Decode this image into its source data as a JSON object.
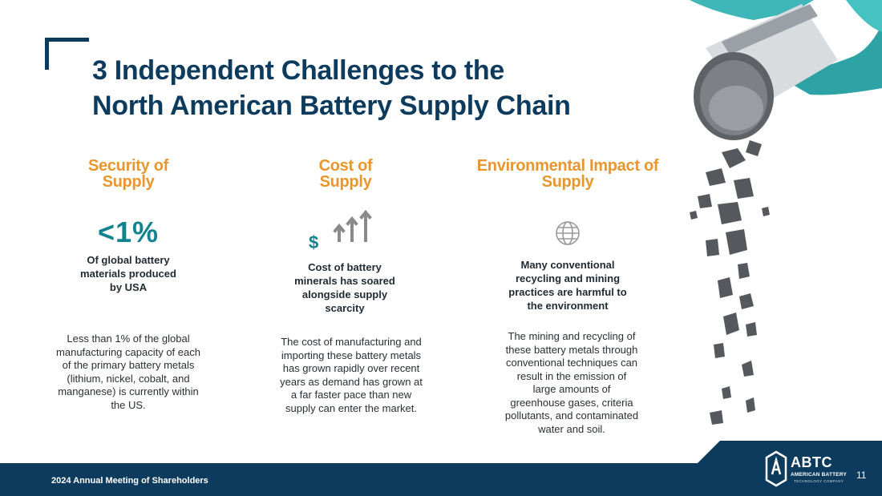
{
  "title": {
    "line1": "3 Independent Challenges to the",
    "line2": "North American Battery Supply Chain"
  },
  "columns": [
    {
      "heading_line1": "Security of",
      "heading_line2": "Supply",
      "stat": "<1%",
      "subtitle": "Of global battery materials produced by USA",
      "body": "Less than 1% of the global manufacturing capacity of each of the primary battery metals (lithium, nickel, cobalt, and manganese) is currently within the US."
    },
    {
      "heading_line1": "Cost of",
      "heading_line2": "Supply",
      "icon_currency": "$",
      "icon": "dollar-rising-arrows-icon",
      "subtitle": "Cost of battery minerals has soared alongside supply scarcity",
      "body": "The cost of manufacturing and importing these battery metals has grown rapidly over recent years as demand has grown at a far faster pace than new supply can enter the market."
    },
    {
      "heading_line1": "Environmental Impact of",
      "heading_line2": "Supply",
      "icon": "globe-icon",
      "subtitle": "Many conventional recycling and mining practices are harmful to the environment",
      "body": "The mining and recycling of these battery metals through conventional techniques can result in the emission of large amounts of greenhouse gases, criteria pollutants, and contaminated water and soil."
    }
  ],
  "footer": {
    "meeting": "2024 Annual Meeting of Shareholders",
    "page_number": "11",
    "logo_name": "ABTC",
    "logo_line1": "AMERICAN BATTERY",
    "logo_line2": "TECHNOLOGY COMPANY"
  },
  "colors": {
    "navy": "#0d3b5e",
    "orange": "#e8962d",
    "teal": "#13828f",
    "glove": "#3fb6b8"
  }
}
